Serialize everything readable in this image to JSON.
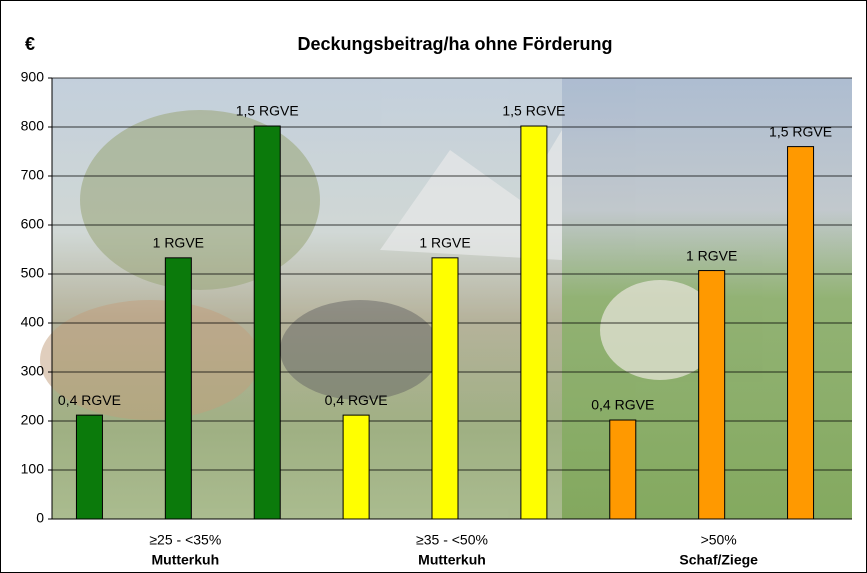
{
  "chart_data": {
    "type": "bar",
    "title": "Deckungsbeitrag/ha ohne Förderung",
    "y_label": "€",
    "categories": [
      "≥25 - <35%",
      "≥35 - <50%",
      ">50%"
    ],
    "category_sublabels": [
      "Mutterkuh",
      "Mutterkuh",
      "Schaf/Ziege"
    ],
    "category_colors": [
      "#0b7a0b",
      "#ffff00",
      "#ff9900"
    ],
    "series": [
      {
        "name": "0,4 RGVE",
        "values": [
          212,
          212,
          202
        ]
      },
      {
        "name": "1 RGVE",
        "values": [
          533,
          533,
          507
        ]
      },
      {
        "name": "1,5 RGVE",
        "values": [
          802,
          802,
          760
        ]
      }
    ],
    "ylim": [
      0,
      900
    ],
    "yticks": [
      0,
      100,
      200,
      300,
      400,
      500,
      600,
      700,
      800,
      900
    ],
    "grid": true
  }
}
